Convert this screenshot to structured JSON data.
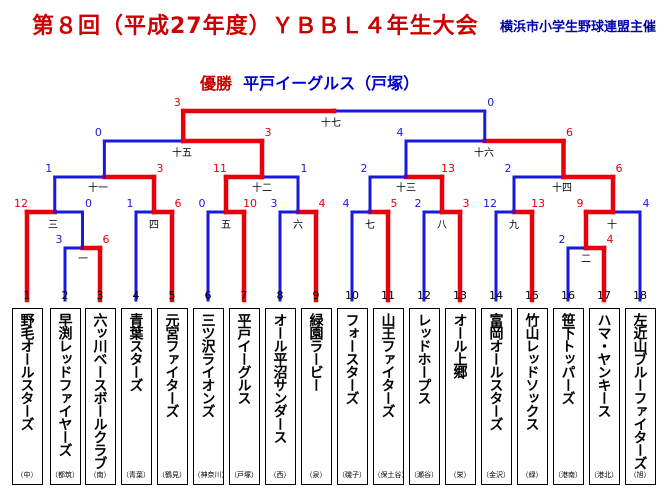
{
  "header": {
    "title": "第８回（平成27年度）ＹＢＢＬ４年生大会",
    "organizer": "横浜市小学生野球連盟主催"
  },
  "result": {
    "label": "優勝",
    "champion": "平戸イーグルス（戸塚）"
  },
  "colors": {
    "win": "#e8000a",
    "loss": "#1a1adc",
    "title": "#cc0000",
    "score_win": "#e8000a",
    "score_loss": "#1a1adc"
  },
  "teams": [
    {
      "num": "1",
      "name": "野毛オールスターズ",
      "area": "（中）"
    },
    {
      "num": "2",
      "name": "早渕レッドファイヤーズ",
      "area": "（都筑）"
    },
    {
      "num": "3",
      "name": "六ッ川ベースボールクラブ",
      "area": "（南）"
    },
    {
      "num": "4",
      "name": "青葉スターズ",
      "area": "（青葉）"
    },
    {
      "num": "5",
      "name": "元宮ファイターズ",
      "area": "（鶴見）"
    },
    {
      "num": "6",
      "name": "三ツ沢ライオンズ",
      "area": "（神奈川）"
    },
    {
      "num": "7",
      "name": "平戸イーグルス",
      "area": "（戸塚）"
    },
    {
      "num": "8",
      "name": "オール平沼サンダース",
      "area": "（西）"
    },
    {
      "num": "9",
      "name": "緑園ラービー",
      "area": "（泉）"
    },
    {
      "num": "10",
      "name": "フォースターズ",
      "area": "（磯子）"
    },
    {
      "num": "11",
      "name": "山王ファイターズ",
      "area": "（保土谷）"
    },
    {
      "num": "12",
      "name": "レッドホープス",
      "area": "（瀬谷）"
    },
    {
      "num": "13",
      "name": "オール上郷",
      "area": "（栄）"
    },
    {
      "num": "14",
      "name": "富岡オールスターズ",
      "area": "（金沢）"
    },
    {
      "num": "15",
      "name": "竹山レッドソックス",
      "area": "（緑）"
    },
    {
      "num": "16",
      "name": "笹下トッパーズ",
      "area": "（港南）"
    },
    {
      "num": "17",
      "name": "ハマ・ヤンキース",
      "area": "（港北）"
    },
    {
      "num": "18",
      "name": "左近山ブルーファイターズ",
      "area": "（旭）"
    }
  ],
  "games": [
    {
      "id": "一",
      "scores": [
        "3",
        "6"
      ]
    },
    {
      "id": "二",
      "scores": [
        "2",
        "4"
      ]
    },
    {
      "id": "三",
      "scores": [
        "12",
        "0"
      ]
    },
    {
      "id": "四",
      "scores": [
        "1",
        "6"
      ]
    },
    {
      "id": "五",
      "scores": [
        "0",
        "10"
      ]
    },
    {
      "id": "六",
      "scores": [
        "3",
        "4"
      ]
    },
    {
      "id": "七",
      "scores": [
        "4",
        "5"
      ]
    },
    {
      "id": "八",
      "scores": [
        "2",
        "3"
      ]
    },
    {
      "id": "九",
      "scores": [
        "12",
        "13"
      ]
    },
    {
      "id": "十",
      "scores": [
        "9",
        "4"
      ]
    },
    {
      "id": "十一",
      "scores": [
        "1",
        "3"
      ]
    },
    {
      "id": "十二",
      "scores": [
        "11",
        "1"
      ]
    },
    {
      "id": "十三",
      "scores": [
        "2",
        "13"
      ]
    },
    {
      "id": "十四",
      "scores": [
        "2",
        "6"
      ]
    },
    {
      "id": "十五",
      "scores": [
        "0",
        "3"
      ]
    },
    {
      "id": "十六",
      "scores": [
        "4",
        "6"
      ]
    },
    {
      "id": "十七",
      "scores": [
        "3",
        "0"
      ]
    }
  ]
}
